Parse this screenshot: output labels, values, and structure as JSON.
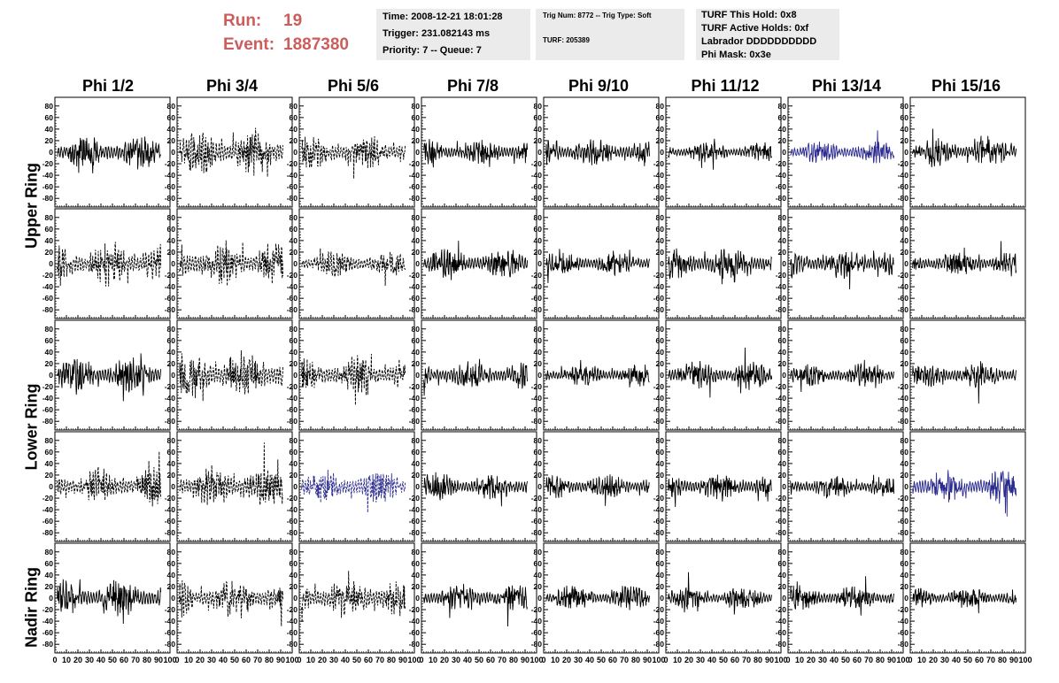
{
  "header": {
    "run_label": "Run:",
    "run_value": "19",
    "event_label": "Event:",
    "event_value": "1887380",
    "time": "Time: 2008-12-21 18:01:28",
    "trigger": "Trigger: 231.082143 ms",
    "priority": "Priority: 7 -- Queue: 7",
    "trig_num": "Trig Num: 8772 -- Trig Type: Soft",
    "turf": "TURF: 205389",
    "turf_this_hold": "TURF This Hold: 0x8",
    "turf_active_holds": "TURF Active Holds: 0xf",
    "labrador": "Labrador DDDDDDDDDD",
    "phi_mask": "Phi Mask: 0x3e"
  },
  "colors": {
    "run_text": "#cd5c5c",
    "info_bg": "#ebebeb",
    "trace": "#000000",
    "highlight": "#2b2b8f"
  },
  "chart_data": {
    "type": "line",
    "columns": [
      "Phi 1/2",
      "Phi 3/4",
      "Phi 5/6",
      "Phi 7/8",
      "Phi 9/10",
      "Phi 11/12",
      "Phi 13/14",
      "Phi 15/16"
    ],
    "row_labels": [
      "Upper Ring",
      "Lower Ring",
      "Nadir Ring"
    ],
    "y_ticks": [
      80,
      60,
      40,
      20,
      0,
      -20,
      -40,
      -60,
      -80
    ],
    "y_tick_labels": [
      "80",
      "60",
      "40",
      "20",
      "0",
      "-20",
      "-40",
      "-60",
      "-80"
    ],
    "ylim": [
      -95,
      95
    ],
    "x_ticks": [
      0,
      10,
      20,
      30,
      40,
      50,
      60,
      70,
      80,
      90,
      100
    ],
    "x_tick_labels": [
      "0",
      "10",
      "20",
      "30",
      "40",
      "50",
      "60",
      "70",
      "80",
      "90",
      "100"
    ],
    "xlim": [
      0,
      100
    ],
    "grid": false,
    "panels": [
      [
        {
          "style": "solid",
          "color": "black",
          "amp": 24,
          "seed": 11
        },
        {
          "style": "dashed",
          "color": "black",
          "amp": 32,
          "seed": 12
        },
        {
          "style": "dashed",
          "color": "black",
          "amp": 24,
          "seed": 13
        },
        {
          "style": "solid",
          "color": "black",
          "amp": 18,
          "seed": 14
        },
        {
          "style": "solid",
          "color": "black",
          "amp": 20,
          "seed": 15
        },
        {
          "style": "solid",
          "color": "black",
          "amp": 14,
          "seed": 16
        },
        {
          "style": "solid",
          "color": "blue",
          "amp": 16,
          "seed": 17
        },
        {
          "style": "solid",
          "color": "black",
          "amp": 20,
          "seed": 18
        }
      ],
      [
        {
          "style": "dashed",
          "color": "black",
          "amp": 32,
          "seed": 21
        },
        {
          "style": "dashed",
          "color": "black",
          "amp": 32,
          "seed": 22
        },
        {
          "style": "dashed",
          "color": "black",
          "amp": 20,
          "seed": 23
        },
        {
          "style": "solid",
          "color": "black",
          "amp": 22,
          "seed": 24
        },
        {
          "style": "solid",
          "color": "black",
          "amp": 18,
          "seed": 25
        },
        {
          "style": "solid",
          "color": "black",
          "amp": 22,
          "seed": 26
        },
        {
          "style": "solid",
          "color": "black",
          "amp": 22,
          "seed": 27
        },
        {
          "style": "solid",
          "color": "black",
          "amp": 18,
          "seed": 28
        }
      ],
      [
        {
          "style": "solid",
          "color": "black",
          "amp": 26,
          "seed": 31
        },
        {
          "style": "dashed",
          "color": "black",
          "amp": 34,
          "seed": 32
        },
        {
          "style": "dashed",
          "color": "black",
          "amp": 26,
          "seed": 33
        },
        {
          "style": "solid",
          "color": "black",
          "amp": 20,
          "seed": 34
        },
        {
          "style": "solid",
          "color": "black",
          "amp": 16,
          "seed": 35
        },
        {
          "style": "solid",
          "color": "black",
          "amp": 20,
          "seed": 36
        },
        {
          "style": "solid",
          "color": "black",
          "amp": 18,
          "seed": 37
        },
        {
          "style": "solid",
          "color": "black",
          "amp": 18,
          "seed": 38
        }
      ],
      [
        {
          "style": "dashed",
          "color": "black",
          "amp": 26,
          "seed": 41
        },
        {
          "style": "dashed",
          "color": "black",
          "amp": 30,
          "seed": 42
        },
        {
          "style": "dashed",
          "color": "blue",
          "amp": 24,
          "seed": 43
        },
        {
          "style": "solid",
          "color": "black",
          "amp": 20,
          "seed": 44
        },
        {
          "style": "solid",
          "color": "black",
          "amp": 18,
          "seed": 45
        },
        {
          "style": "solid",
          "color": "black",
          "amp": 20,
          "seed": 46
        },
        {
          "style": "solid",
          "color": "black",
          "amp": 16,
          "seed": 47
        },
        {
          "style": "solid",
          "color": "blue",
          "amp": 24,
          "seed": 48
        }
      ],
      [
        {
          "style": "solid",
          "color": "black",
          "amp": 26,
          "seed": 51
        },
        {
          "style": "dashed",
          "color": "black",
          "amp": 26,
          "seed": 52
        },
        {
          "style": "dashed",
          "color": "black",
          "amp": 28,
          "seed": 53
        },
        {
          "style": "solid",
          "color": "black",
          "amp": 20,
          "seed": 54
        },
        {
          "style": "solid",
          "color": "black",
          "amp": 18,
          "seed": 55
        },
        {
          "style": "solid",
          "color": "black",
          "amp": 16,
          "seed": 56
        },
        {
          "style": "solid",
          "color": "black",
          "amp": 18,
          "seed": 57
        },
        {
          "style": "solid",
          "color": "black",
          "amp": 16,
          "seed": 58
        }
      ]
    ]
  }
}
